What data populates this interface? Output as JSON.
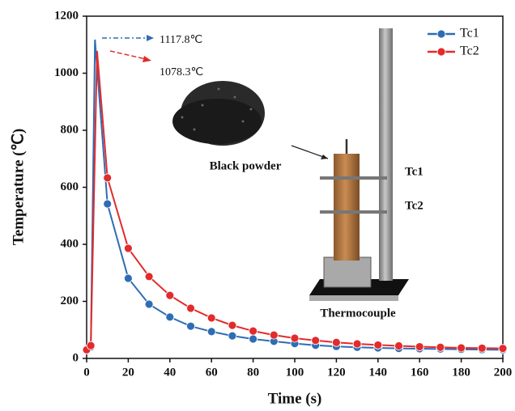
{
  "chart_data": {
    "type": "line",
    "x_label": "Time (s)",
    "y_label": "Temperature (℃)",
    "xlim": [
      0,
      200
    ],
    "xticks": [
      0,
      20,
      40,
      60,
      80,
      100,
      120,
      140,
      160,
      180,
      200
    ],
    "ylim": [
      0,
      1200
    ],
    "yticks": [
      0,
      200,
      400,
      600,
      800,
      1000,
      1200
    ],
    "legend": "top-right",
    "series": [
      {
        "name": "Tc1",
        "color": "#2e6db4",
        "x": [
          0,
          2,
          4,
          10,
          20,
          30,
          40,
          50,
          60,
          70,
          80,
          90,
          100,
          110,
          120,
          130,
          140,
          150,
          160,
          170,
          180,
          190,
          200
        ],
        "values": [
          30,
          40,
          1117.8,
          542,
          281,
          190,
          145,
          113,
          94,
          79,
          68,
          60,
          52,
          46,
          42,
          39,
          37,
          35,
          34,
          33,
          32,
          31,
          30
        ]
      },
      {
        "name": "Tc2",
        "color": "#e32b2b",
        "x": [
          0,
          2,
          5,
          10,
          20,
          30,
          40,
          50,
          60,
          70,
          80,
          90,
          100,
          110,
          120,
          130,
          140,
          150,
          160,
          170,
          180,
          190,
          200
        ],
        "values": [
          30,
          45,
          1078.3,
          633,
          386,
          287,
          221,
          176,
          142,
          116,
          96,
          82,
          71,
          63,
          56,
          51,
          47,
          44,
          41,
          39,
          37,
          36,
          35
        ]
      }
    ],
    "annotations": [
      "1117.8℃",
      "1078.3℃",
      "Black powder",
      "Tc1",
      "Tc2",
      "Thermocouple"
    ]
  }
}
